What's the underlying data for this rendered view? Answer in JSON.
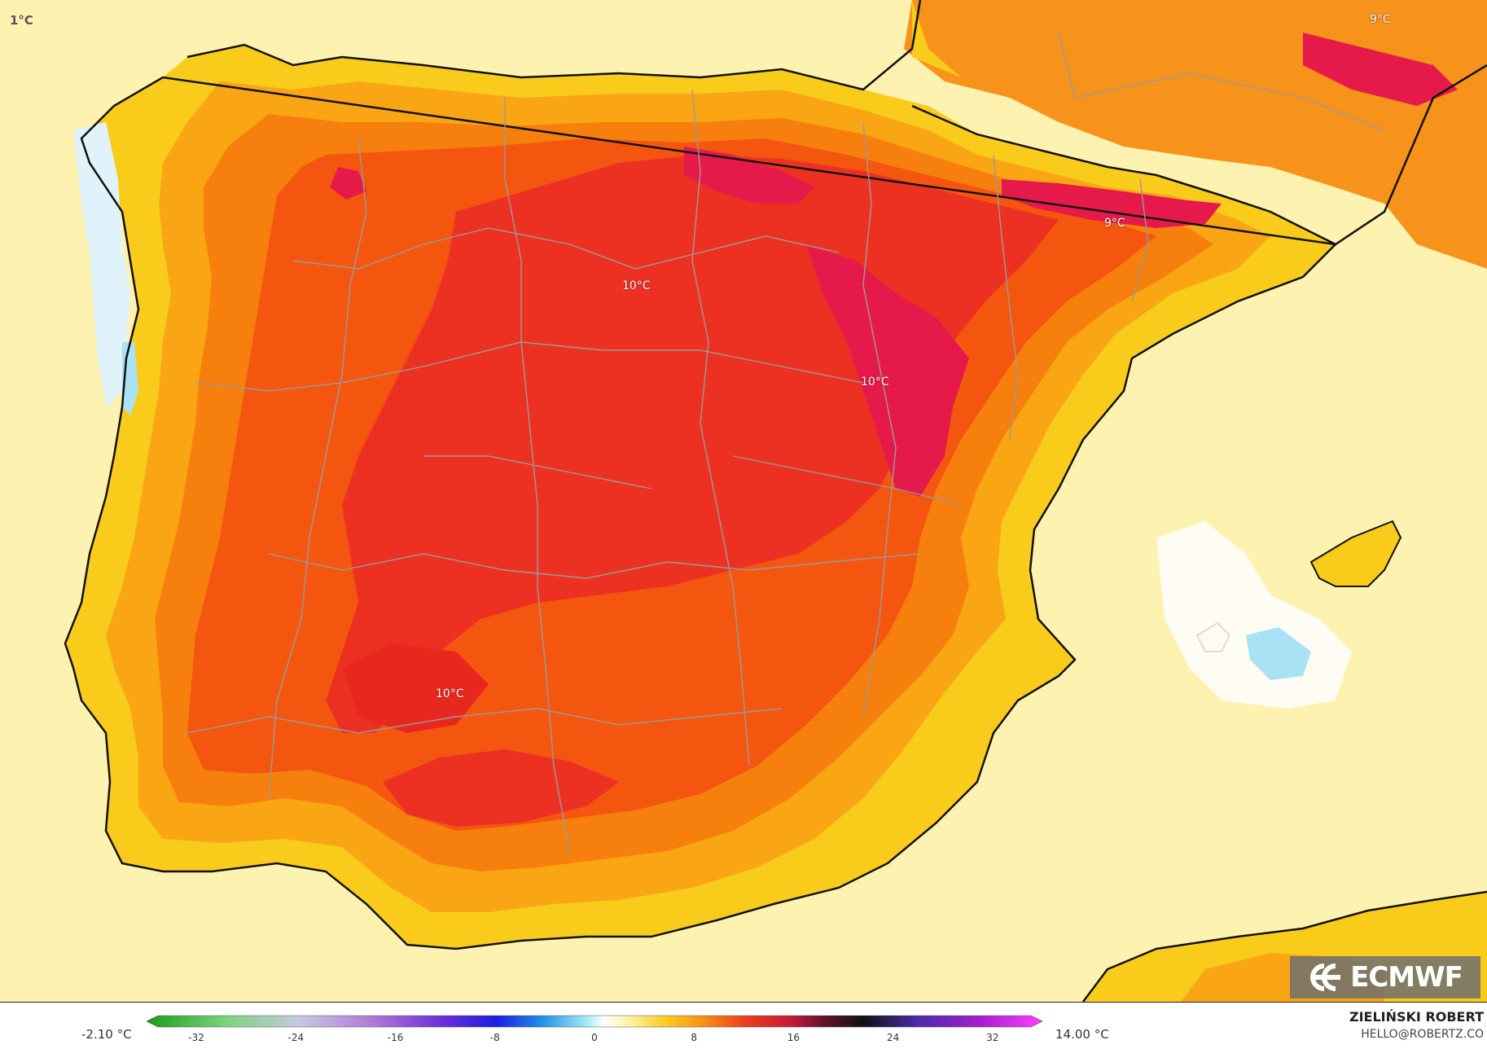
{
  "map": {
    "corner_label": "1°C",
    "labels": [
      {
        "id": "ne-corner",
        "text": "9°C"
      },
      {
        "id": "pyrenees",
        "text": "9°C"
      },
      {
        "id": "north-meseta",
        "text": "10°C"
      },
      {
        "id": "aragon",
        "text": "10°C"
      },
      {
        "id": "south-west",
        "text": "10°C"
      }
    ],
    "logo_text": "ECMWF",
    "colors": {
      "sea": "#fef2b0",
      "light_yellow": "#fde28a",
      "yellow": "#f9cc1c",
      "light_orange": "#f9a514",
      "orange": "#f77f0e",
      "dark_orange": "#f4560f",
      "red": "#ec3122",
      "crimson": "#e61a4a",
      "coast": "#111111",
      "borders": "#9a9a9a"
    }
  },
  "legend": {
    "min_label": "-2.10 °C",
    "max_label": "14.00 °C",
    "ticks": [
      "-32",
      "-24",
      "-16",
      "-8",
      "0",
      "8",
      "16",
      "24",
      "32"
    ],
    "range": [
      -36,
      36
    ]
  },
  "author": {
    "name": "ZIELIŃSKI ROBERT",
    "email": "HELLO@ROBERTZ.CO"
  }
}
